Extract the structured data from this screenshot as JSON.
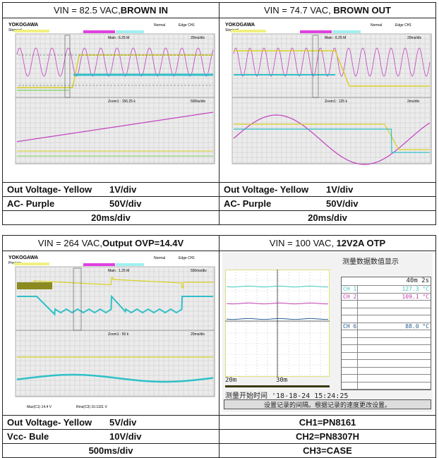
{
  "table1": {
    "left": {
      "title_plain": "VIN = 82.5 VAC,",
      "title_bold": "BROWN IN",
      "scope": {
        "brand": "YOKOGAWA",
        "state": "Stopped",
        "mode": "Normal",
        "trigger": "Edge CH1",
        "main": "Main : 6.25 M",
        "main_div": "20ms/div",
        "zoom": "Zoom1 : 156.25 k",
        "zoom_div": "500ks/div"
      },
      "rows": [
        {
          "label": "Out Voltage- Yellow",
          "value": "1V/div"
        },
        {
          "label": "AC- Purple",
          "value": "50V/div"
        }
      ],
      "timebase": "20ms/div"
    },
    "right": {
      "title_plain": "VIN = 74.7 VAC, ",
      "title_bold": "BROWN OUT",
      "scope": {
        "brand": "YOKOGAWA",
        "state": "Stopped",
        "mode": "Normal",
        "trigger": "Edge CH1",
        "main": "Main : 6.25 M",
        "main_div": "20ms/div",
        "zoom": "Zoom1 : 125 k",
        "zoom_div": "2ms/div"
      },
      "rows": [
        {
          "label": "Out Voltage- Yellow",
          "value": "1V/div"
        },
        {
          "label": "AC- Purple",
          "value": "50V/div"
        }
      ],
      "timebase": "20ms/div"
    }
  },
  "table2": {
    "left": {
      "title_plain": "VIN = 264 VAC,",
      "title_bold": "Output OVP=14.4V",
      "scope": {
        "brand": "YOKOGAWA",
        "state": "Preview",
        "mode": "Normal",
        "trigger": "Edge CH1",
        "main": "Main : 1.25 M",
        "main_div": "500ms/div",
        "zoom": "Zoom1 : 50 k",
        "zoom_div": "20ms/div",
        "readout1": "Max(C1)  14.4 V",
        "readout2": "Rms(C3)  10.1101 V"
      },
      "rows": [
        {
          "label": "Out Voltage- Yellow",
          "value": "5V/div"
        },
        {
          "label": "Vcc- Bule",
          "value": "10V/div"
        }
      ],
      "timebase": "500ms/div"
    },
    "right": {
      "title_plain": "VIN = 100 VAC, ",
      "title_bold": "12V2A OTP",
      "recorder": {
        "heading": "测量数据数值显示",
        "interval": "40m 2s",
        "channels": [
          {
            "name": "CH 1",
            "value": "127.3 °C",
            "color": "#3cc8c0"
          },
          {
            "name": "CH 2",
            "value": "109.1 °C",
            "color": "#c040b0"
          },
          {
            "name": "CH 6",
            "value": "88.0 °C",
            "color": "#2a6090"
          }
        ],
        "t1": "20m",
        "t2": "30m",
        "start": "测量开始时间 '18-18-24 15:24:25",
        "status": "设置记录的间隔。根据记录的速度更改设置。"
      },
      "rows": [
        "CH1=PN8161",
        "CH2=PN8307H",
        "CH3=CASE"
      ]
    }
  },
  "colors": {
    "yellow": "#d8d020",
    "purple": "#c040c0",
    "cyan": "#30c0c8",
    "green": "#7cd060",
    "grid": "#c8c8c8"
  }
}
